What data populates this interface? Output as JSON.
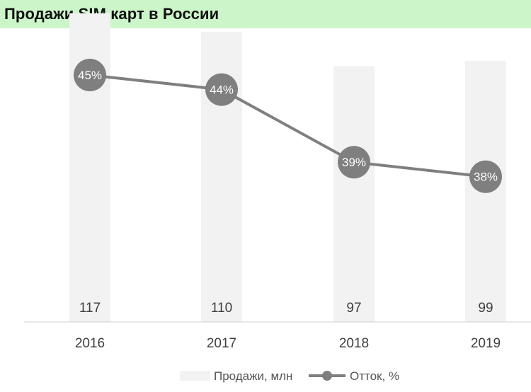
{
  "title": "Продажи SIM карт в России",
  "chart_data": {
    "type": "bar+line",
    "categories": [
      "2016",
      "2017",
      "2018",
      "2019"
    ],
    "series": [
      {
        "name": "Продажи, млн",
        "type": "bar",
        "values": [
          117,
          110,
          97,
          99
        ],
        "labels": [
          "117",
          "110",
          "97",
          "99"
        ],
        "color": "#f2f2f2"
      },
      {
        "name": "Отток, %",
        "type": "line",
        "values": [
          45,
          44,
          39,
          38
        ],
        "labels": [
          "45%",
          "44%",
          "39%",
          "38%"
        ],
        "color": "#7f7f7f"
      }
    ],
    "bar_ylim": [
      0,
      122
    ],
    "line_ylim": [
      28,
      47
    ],
    "grid": false,
    "legend_position": "bottom"
  }
}
